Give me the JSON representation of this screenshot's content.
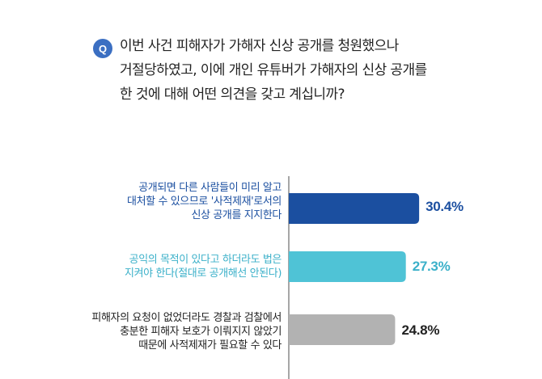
{
  "question": {
    "badge": "Q",
    "text": "이번 사건 피해자가 가해자 신상 공개를 청원했으나\n거절당하였고, 이에 개인 유튜버가 가해자의 신상 공개를\n한 것에 대해 어떤 의견을 갖고 계십니까?"
  },
  "chart_data": {
    "type": "bar",
    "orientation": "horizontal",
    "unit": "%",
    "categories": [
      "공개되면 다른 사람들이 미리 알고\n대처할 수 있으므로 '사적제재'로서의\n신상 공개를 지지한다",
      "공익의 목적이 있다고 하더라도 법은\n지켜야 한다(절대로 공개해선 안된다)",
      "피해자의 요청이 없었더라도 경찰과 검찰에서\n충분한 피해자 보호가 이뤄지지 않았기\n때문에 사적제재가 필요할 수 있다"
    ],
    "values": [
      30.4,
      27.3,
      24.8
    ],
    "value_labels": [
      "30.4%",
      "27.3%",
      "24.8%"
    ],
    "bar_colors": [
      "#1b4fa0",
      "#4fc3d6",
      "#b2b2b2"
    ],
    "label_colors": [
      "#1b4fa0",
      "#3bb0c9",
      "#222222"
    ],
    "value_colors": [
      "#1b4fa0",
      "#3bb0c9",
      "#222222"
    ],
    "axis_color": "#888888"
  }
}
